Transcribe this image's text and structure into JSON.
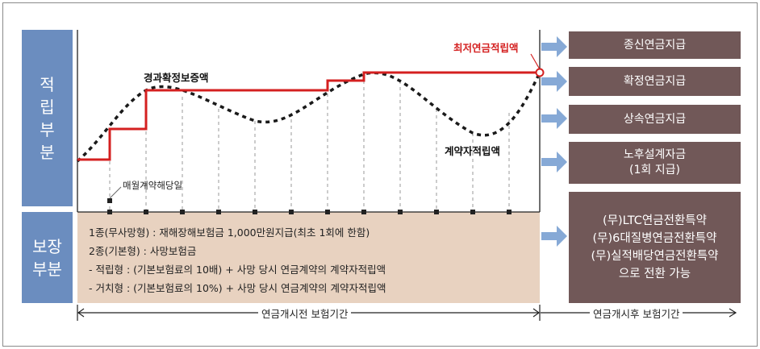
{
  "side": {
    "accumulation": "적\n립\n부\n분",
    "protection": "보장\n부분"
  },
  "chart": {
    "guaranteed_label": "경과확정보증액",
    "minimum_label": "최저연금적립액",
    "reserve_label": "계약자적립액",
    "monthly_label": "매월계약해당일"
  },
  "insured": {
    "lines": [
      "1종(무사망형) : 재해장해보험금 1,000만원지급(최초 1회에 한함)",
      "2종(기본형) : 사망보험금",
      "- 적립형 : (기본보험료의 10배) + 사망 당시 연금계약의 계약자적립액",
      "- 거치형 : (기본보험료의 10%) + 사망 당시 연금계약의 계약자적립액"
    ]
  },
  "options": [
    {
      "label": "종신연금지급"
    },
    {
      "label": "확정연금지급"
    },
    {
      "label": "상속연금지급"
    },
    {
      "label": "노후설계자금\n(1회 지급)"
    },
    {
      "label": "(무)LTC연금전환특약\n(무)6대질병연금전환특약\n(무)실적배당연금전환특약\n으로 전환 가능"
    }
  ],
  "periods": {
    "before": "연금개시전 보험기간",
    "after": "연금개시후 보험기간"
  },
  "colors": {
    "side_blue": "#6b8dbf",
    "option_brown": "#715858",
    "insured_beige": "#e8d2c0",
    "guarantee_red": "#d42020",
    "arrow_blue": "#86a9d6"
  }
}
